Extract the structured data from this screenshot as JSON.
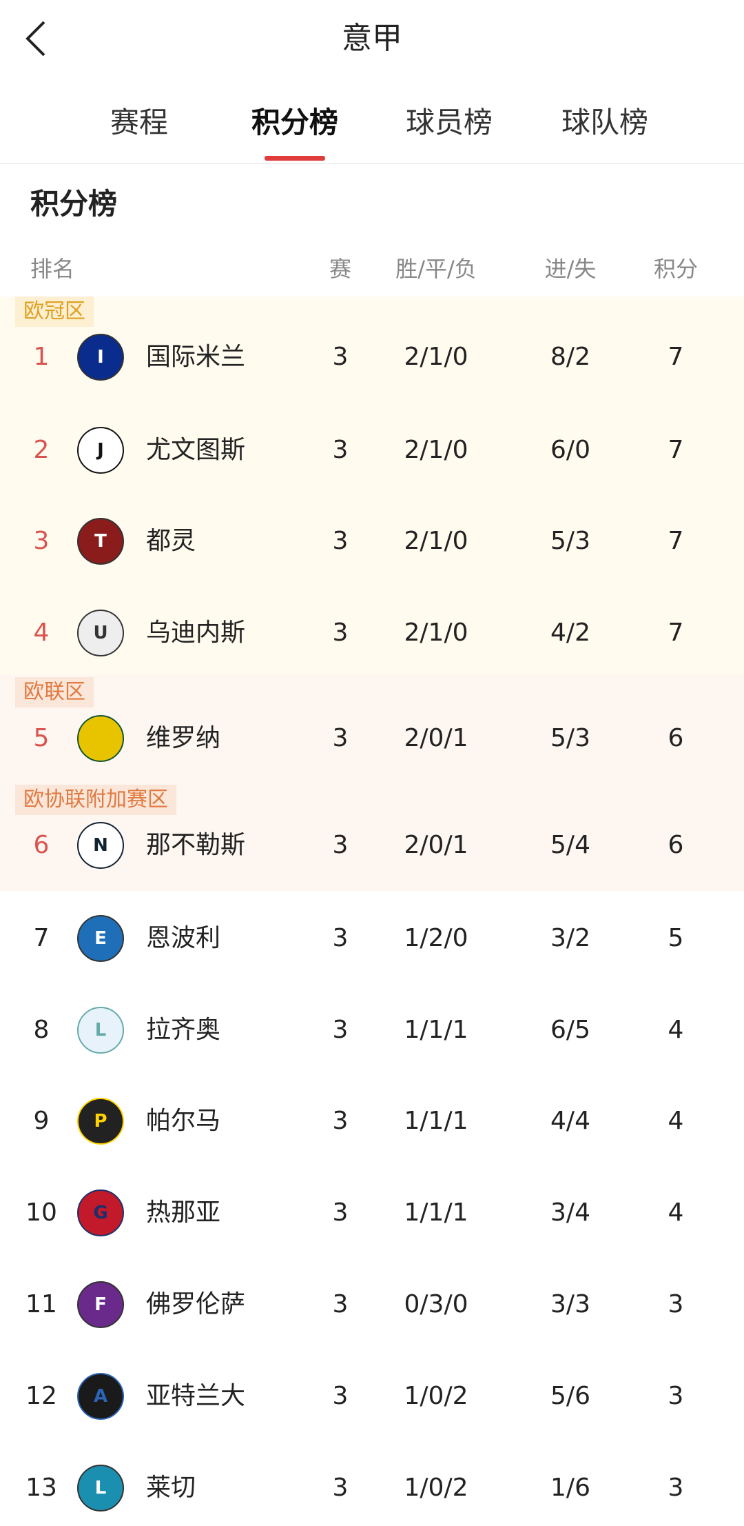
{
  "header": {
    "title": "意甲",
    "back_icon": "chevron-left-icon"
  },
  "tabs": [
    {
      "label": "赛程"
    },
    {
      "label": "积分榜",
      "active": true
    },
    {
      "label": "球员榜"
    },
    {
      "label": "球队榜"
    }
  ],
  "section_title": "积分榜",
  "columns": {
    "rank": "排名",
    "played": "赛",
    "wdl": "胜/平/负",
    "goals": "进/失",
    "points": "积分"
  },
  "zones": [
    {
      "label": "欧冠区",
      "color": "#e0a020",
      "bg": "#fffbef"
    },
    {
      "label": "欧联区",
      "color": "#e07a40",
      "bg": "#fdf6f1"
    },
    {
      "label": "欧协联附加赛区",
      "color": "#e07a40",
      "bg": "#fdf6f1"
    }
  ],
  "rows": [
    {
      "rank": "1",
      "team": "国际米兰",
      "played": "3",
      "wdl": "2/1/0",
      "goals": "8/2",
      "points": "7"
    },
    {
      "rank": "2",
      "team": "尤文图斯",
      "played": "3",
      "wdl": "2/1/0",
      "goals": "6/0",
      "points": "7"
    },
    {
      "rank": "3",
      "team": "都灵",
      "played": "3",
      "wdl": "2/1/0",
      "goals": "5/3",
      "points": "7"
    },
    {
      "rank": "4",
      "team": "乌迪内斯",
      "played": "3",
      "wdl": "2/1/0",
      "goals": "4/2",
      "points": "7"
    },
    {
      "rank": "5",
      "team": "维罗纳",
      "played": "3",
      "wdl": "2/0/1",
      "goals": "5/3",
      "points": "6"
    },
    {
      "rank": "6",
      "team": "那不勒斯",
      "played": "3",
      "wdl": "2/0/1",
      "goals": "5/4",
      "points": "6"
    },
    {
      "rank": "7",
      "team": "恩波利",
      "played": "3",
      "wdl": "1/2/0",
      "goals": "3/2",
      "points": "5"
    },
    {
      "rank": "8",
      "team": "拉齐奥",
      "played": "3",
      "wdl": "1/1/1",
      "goals": "6/5",
      "points": "4"
    },
    {
      "rank": "9",
      "team": "帕尔马",
      "played": "3",
      "wdl": "1/1/1",
      "goals": "4/4",
      "points": "4"
    },
    {
      "rank": "10",
      "team": "热那亚",
      "played": "3",
      "wdl": "1/1/1",
      "goals": "3/4",
      "points": "4"
    },
    {
      "rank": "11",
      "team": "佛罗伦萨",
      "played": "3",
      "wdl": "0/3/0",
      "goals": "3/3",
      "points": "3"
    },
    {
      "rank": "12",
      "team": "亚特兰大",
      "played": "3",
      "wdl": "1/0/2",
      "goals": "5/6",
      "points": "3"
    },
    {
      "rank": "13",
      "team": "莱切",
      "played": "3",
      "wdl": "1/0/2",
      "goals": "1/6",
      "points": "3"
    }
  ]
}
